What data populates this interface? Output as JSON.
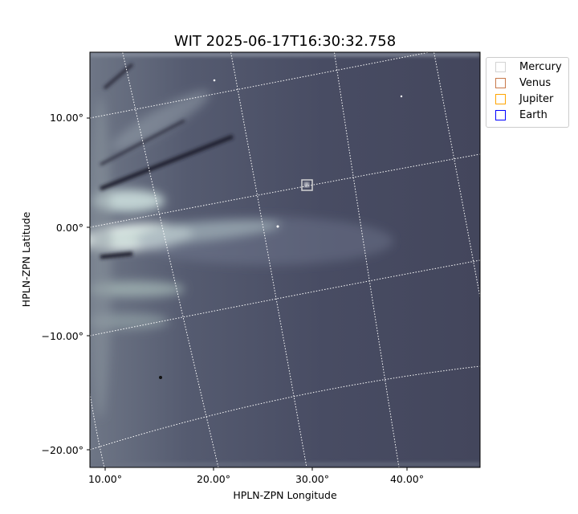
{
  "chart_data": {
    "type": "image",
    "title": "WIT 2025-06-17T16:30:32.758",
    "xlabel": "HPLN-ZPN Longitude",
    "ylabel": "HPLN-ZPN Latitude",
    "x_ticks": [
      "10.00°",
      "20.00°",
      "30.00°",
      "40.00°"
    ],
    "y_ticks": [
      "10.00°",
      "0.00°",
      "−10.00°",
      "−20.00°"
    ],
    "grid": true,
    "colormap": "bone",
    "legend_position": "outside-top-right",
    "legend": [
      {
        "name": "Mercury",
        "color": "#d3d3d3"
      },
      {
        "name": "Venus",
        "color": "#c8784a"
      },
      {
        "name": "Jupiter",
        "color": "#ffa500"
      },
      {
        "name": "Earth",
        "color": "#0000ff"
      }
    ],
    "markers": [
      {
        "name": "Mercury",
        "lon": 29.5,
        "lat": 3.8
      }
    ]
  }
}
